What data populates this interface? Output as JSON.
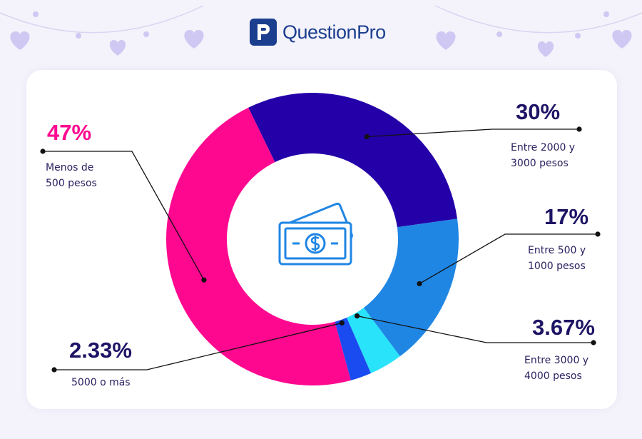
{
  "brand": {
    "name": "QuestionPro",
    "color": "#1c3e8f"
  },
  "center_icon": "money-bill-icon",
  "chart_data": {
    "type": "pie",
    "donut": true,
    "title": "",
    "legend": "none",
    "slices": [
      {
        "label": "Entre 2000 y 3000 pesos",
        "line1": "Entre 2000 y",
        "line2": "3000 pesos",
        "value": 30,
        "display": "30%",
        "color": "#2400a8"
      },
      {
        "label": "Entre 500 y 1000 pesos",
        "line1": "Entre 500 y",
        "line2": "1000 pesos",
        "value": 17,
        "display": "17%",
        "color": "#1f86e4"
      },
      {
        "label": "Entre 3000 y 4000 pesos",
        "line1": "Entre 3000 y",
        "line2": "4000 pesos",
        "value": 3.67,
        "display": "3.67%",
        "color": "#29e3fb"
      },
      {
        "label": "5000 o más",
        "line1": "5000 o más",
        "line2": "",
        "value": 2.33,
        "display": "2.33%",
        "color": "#1a4bf0"
      },
      {
        "label": "Menos de 500 pesos",
        "line1": "Menos de",
        "line2": "500 pesos",
        "value": 47,
        "display": "47%",
        "color": "#ff0890"
      }
    ]
  }
}
